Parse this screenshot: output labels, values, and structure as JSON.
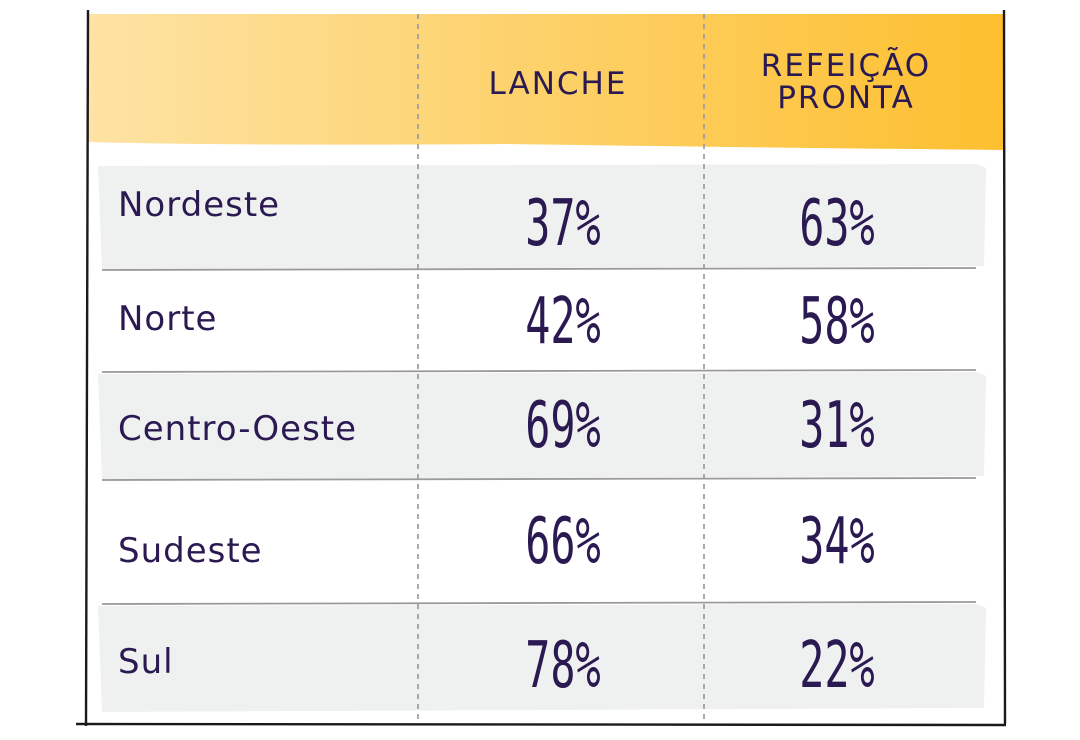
{
  "chart_data": {
    "type": "table",
    "columns": [
      "",
      "LANCHE",
      "REFEIÇÃO PRONTA"
    ],
    "header_lines": [
      [],
      [
        "LANCHE"
      ],
      [
        "REFEIÇÃO",
        "PRONTA"
      ]
    ],
    "rows": [
      {
        "label": "Nordeste",
        "values": [
          "37%",
          "63%"
        ],
        "shaded": true
      },
      {
        "label": "Norte",
        "values": [
          "42%",
          "58%"
        ],
        "shaded": false
      },
      {
        "label": "Centro-Oeste",
        "values": [
          "69%",
          "31%"
        ],
        "shaded": true
      },
      {
        "label": "Sudeste",
        "values": [
          "66%",
          "34%"
        ],
        "shaded": false
      },
      {
        "label": "Sul",
        "values": [
          "78%",
          "22%"
        ],
        "shaded": true
      }
    ]
  },
  "colors": {
    "text": "#2b1a52",
    "header_start": "#fde3a4",
    "header_end": "#fdbf2f",
    "row_shade": "#eff1f1",
    "border": "#1a1a1a",
    "divider": "#9a9a9a",
    "dash": "#a0a0a0"
  }
}
